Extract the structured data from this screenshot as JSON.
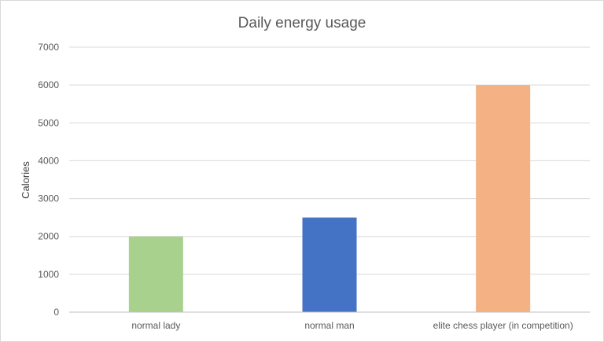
{
  "chart_data": {
    "type": "bar",
    "title": "Daily energy usage",
    "xlabel": "",
    "ylabel": "Calories",
    "categories": [
      "normal lady",
      "normal man",
      "elite chess player (in competition)"
    ],
    "values": [
      2000,
      2500,
      6000
    ],
    "colors": [
      "#a9d18e",
      "#4472c4",
      "#f4b183"
    ],
    "ylim": [
      0,
      7000
    ],
    "yticks": [
      0,
      1000,
      2000,
      3000,
      4000,
      5000,
      6000,
      7000
    ],
    "grid": true,
    "legend": "none"
  }
}
